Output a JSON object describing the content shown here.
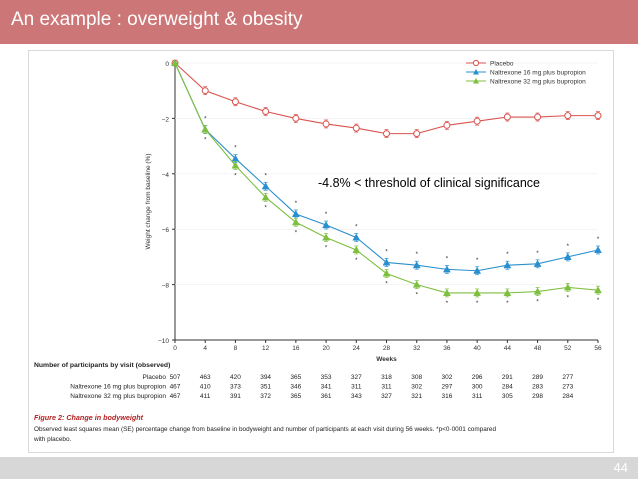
{
  "slide": {
    "title": "An example : overweight & obesity",
    "number": "44"
  },
  "annotation": "-4.8% < threshold of clinical significance",
  "caption": {
    "heading": "Figure 2: Change in bodyweight",
    "line1": "Observed least squares mean (SE) percentage change from baseline in bodyweight and number of participants at each visit during 56 weeks. *p<0·0001 compared",
    "line2": "with placebo."
  },
  "colors": {
    "title_bar": "#cd7677",
    "placebo": "#d9534f",
    "nb16": "#2a8fce",
    "nb32": "#7dbf3f"
  },
  "chart_data": {
    "type": "line",
    "xlabel": "Weeks",
    "ylabel": "Weight change from baseline (%)",
    "x": [
      0,
      4,
      8,
      12,
      16,
      20,
      24,
      28,
      32,
      36,
      40,
      44,
      48,
      52,
      56
    ],
    "xlim": [
      0,
      56
    ],
    "ylim": [
      -10,
      0
    ],
    "yticks": [
      "0",
      "−2",
      "−4",
      "−6",
      "−8",
      "−10"
    ],
    "xticks": [
      "0",
      "4",
      "8",
      "12",
      "16",
      "20",
      "24",
      "28",
      "32",
      "36",
      "40",
      "44",
      "48",
      "52",
      "56"
    ],
    "legend_position": "top-right",
    "series": [
      {
        "name": "Placebo",
        "marker": "circle",
        "values": [
          0,
          -1.0,
          -1.4,
          -1.75,
          -2.0,
          -2.2,
          -2.35,
          -2.55,
          -2.55,
          -2.25,
          -2.1,
          -1.95,
          -1.95,
          -1.9,
          -1.9
        ]
      },
      {
        "name": "Naltrexone 16 mg plus bupropion",
        "marker": "triangle",
        "values": [
          0,
          -2.4,
          -3.45,
          -4.45,
          -5.45,
          -5.85,
          -6.3,
          -7.2,
          -7.3,
          -7.45,
          -7.5,
          -7.3,
          -7.25,
          -7.0,
          -6.75
        ]
      },
      {
        "name": "Naltrexone 32 mg plus bupropion",
        "marker": "triangle",
        "values": [
          0,
          -2.4,
          -3.7,
          -4.85,
          -5.75,
          -6.3,
          -6.75,
          -7.6,
          -8.0,
          -8.3,
          -8.3,
          -8.3,
          -8.25,
          -8.1,
          -8.2
        ]
      }
    ],
    "significance_marks": "*"
  },
  "participants": {
    "heading": "Number of participants by visit (observed)",
    "rows": [
      {
        "label": "Placebo",
        "values": [
          "507",
          "463",
          "420",
          "394",
          "365",
          "353",
          "327",
          "318",
          "308",
          "302",
          "296",
          "291",
          "289",
          "277"
        ]
      },
      {
        "label": "Naltrexone 16 mg plus bupropion",
        "values": [
          "467",
          "410",
          "373",
          "351",
          "346",
          "341",
          "311",
          "311",
          "302",
          "297",
          "300",
          "284",
          "283",
          "273"
        ]
      },
      {
        "label": "Naltrexone 32 mg plus bupropion",
        "values": [
          "467",
          "411",
          "391",
          "372",
          "365",
          "361",
          "343",
          "327",
          "321",
          "316",
          "311",
          "305",
          "298",
          "284"
        ]
      }
    ]
  }
}
